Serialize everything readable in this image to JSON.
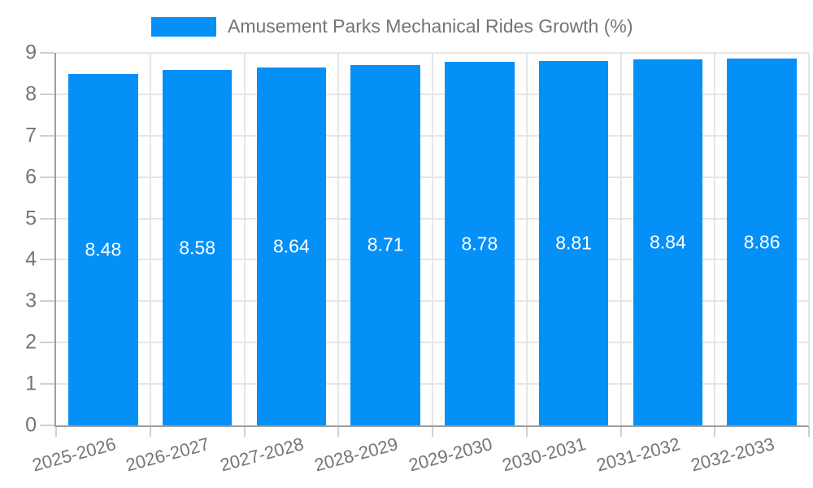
{
  "chart_data": {
    "type": "bar",
    "title": "Amusement Parks Mechanical Rides Growth (%)",
    "categories": [
      "2025-2026",
      "2026-2027",
      "2027-2028",
      "2028-2029",
      "2029-2030",
      "2030-2031",
      "2031-2032",
      "2032-2033"
    ],
    "series": [
      {
        "name": "Amusement Parks Mechanical Rides Growth (%)",
        "values": [
          8.48,
          8.58,
          8.64,
          8.71,
          8.78,
          8.81,
          8.84,
          8.86
        ]
      }
    ],
    "value_labels": [
      "8.48",
      "8.58",
      "8.64",
      "8.71",
      "8.78",
      "8.81",
      "8.84",
      "8.86"
    ],
    "xlabel": "",
    "ylabel": "",
    "ylim": [
      0,
      9
    ],
    "yticks": [
      0,
      1,
      2,
      3,
      4,
      5,
      6,
      7,
      8,
      9
    ],
    "grid": true,
    "legend_position": "top",
    "colors": {
      "bar": "#0590f8",
      "value_label": "#ffffff",
      "axis_line": "#9e9e9e",
      "gridline": "#e6e6e6",
      "tick_mark": "#d0d0d0",
      "label_text": "#757575",
      "background": "#ffffff"
    }
  }
}
